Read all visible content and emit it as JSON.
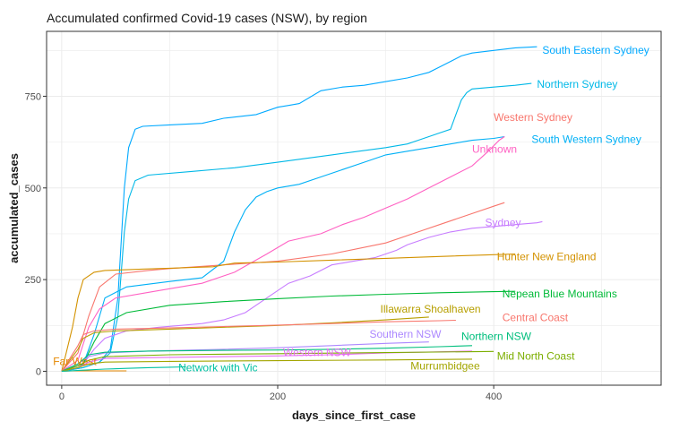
{
  "chart_data": {
    "type": "line",
    "title": "Accumulated confirmed Covid-19 cases (NSW), by region",
    "xlabel": "days_since_first_case",
    "ylabel": "accumulated_cases",
    "xlim": [
      -14,
      555
    ],
    "ylim": [
      -38,
      927
    ],
    "x_ticks": [
      0,
      200,
      400
    ],
    "y_ticks": [
      0,
      250,
      500,
      750
    ],
    "grid": true,
    "series": [
      {
        "name": "South Eastern Sydney",
        "color": "#00A9FF",
        "label_at": [
          445,
          876
        ],
        "x": [
          0,
          20,
          35,
          45,
          52,
          58,
          62,
          68,
          75,
          100,
          130,
          150,
          180,
          200,
          210,
          220,
          240,
          260,
          280,
          300,
          320,
          340,
          350,
          360,
          370,
          380,
          400,
          420,
          440
        ],
        "y": [
          0,
          10,
          25,
          60,
          200,
          500,
          610,
          660,
          668,
          672,
          676,
          690,
          700,
          720,
          725,
          730,
          765,
          775,
          780,
          790,
          800,
          815,
          830,
          845,
          860,
          868,
          875,
          882,
          885
        ]
      },
      {
        "name": "Northern Sydney",
        "color": "#00B8E7",
        "label_at": [
          440,
          783
        ],
        "x": [
          0,
          20,
          35,
          45,
          52,
          58,
          62,
          68,
          80,
          120,
          160,
          200,
          250,
          300,
          320,
          330,
          340,
          350,
          360,
          365,
          370,
          375,
          380,
          400,
          420,
          435
        ],
        "y": [
          0,
          10,
          25,
          50,
          150,
          380,
          470,
          520,
          535,
          545,
          555,
          570,
          590,
          610,
          620,
          630,
          640,
          650,
          660,
          700,
          740,
          760,
          770,
          775,
          780,
          785
        ]
      },
      {
        "name": "Western Sydney",
        "color": "#F8766D",
        "label_at": [
          400,
          692
        ],
        "x": [
          0,
          15,
          25,
          35,
          50,
          80,
          100,
          150,
          200,
          250,
          300,
          330,
          350,
          380,
          400,
          410
        ],
        "y": [
          0,
          50,
          150,
          230,
          265,
          275,
          280,
          290,
          300,
          320,
          350,
          380,
          400,
          430,
          450,
          460
        ]
      },
      {
        "name": "South Western Sydney",
        "color": "#00B0F6",
        "label_at": [
          435,
          633
        ],
        "x": [
          0,
          20,
          30,
          40,
          60,
          100,
          130,
          150,
          160,
          170,
          180,
          190,
          200,
          220,
          240,
          260,
          280,
          300,
          320,
          340,
          360,
          380,
          400,
          410
        ],
        "y": [
          0,
          20,
          100,
          200,
          230,
          245,
          255,
          300,
          380,
          440,
          475,
          490,
          500,
          510,
          530,
          550,
          570,
          590,
          600,
          610,
          620,
          630,
          635,
          640
        ]
      },
      {
        "name": "Unknown",
        "color": "#FF61C3",
        "label_at": [
          380,
          606
        ],
        "x": [
          0,
          15,
          25,
          35,
          50,
          80,
          100,
          130,
          160,
          190,
          210,
          240,
          260,
          280,
          300,
          320,
          340,
          360,
          380,
          395,
          405,
          410
        ],
        "y": [
          0,
          30,
          120,
          170,
          200,
          215,
          225,
          240,
          270,
          320,
          355,
          375,
          400,
          420,
          445,
          470,
          500,
          530,
          560,
          600,
          630,
          640
        ]
      },
      {
        "name": "Sydney",
        "color": "#C77CFF",
        "label_at": [
          392,
          406
        ],
        "x": [
          0,
          20,
          30,
          40,
          60,
          90,
          110,
          130,
          150,
          170,
          190,
          210,
          230,
          250,
          270,
          290,
          300,
          310,
          320,
          340,
          360,
          370,
          380,
          400,
          420,
          440,
          445
        ],
        "y": [
          0,
          20,
          60,
          90,
          110,
          120,
          125,
          130,
          140,
          160,
          200,
          240,
          260,
          290,
          300,
          310,
          320,
          330,
          345,
          365,
          380,
          385,
          390,
          395,
          400,
          405,
          408
        ]
      },
      {
        "name": "Hunter New England",
        "color": "#D39200",
        "label_at": [
          403,
          312
        ],
        "x": [
          0,
          10,
          15,
          20,
          30,
          40,
          60,
          80,
          100,
          120,
          140,
          160,
          200,
          250,
          300,
          350,
          400,
          420
        ],
        "y": [
          0,
          120,
          200,
          250,
          270,
          275,
          277,
          279,
          281,
          283,
          285,
          295,
          298,
          303,
          308,
          313,
          318,
          320
        ]
      },
      {
        "name": "Nepean Blue Mountains",
        "color": "#00BA38",
        "label_at": [
          408,
          211
        ],
        "x": [
          0,
          20,
          30,
          40,
          60,
          100,
          150,
          200,
          250,
          300,
          350,
          400,
          420
        ],
        "y": [
          0,
          20,
          80,
          130,
          160,
          180,
          190,
          198,
          205,
          210,
          214,
          217,
          218
        ]
      },
      {
        "name": "Illawarra Shoalhaven",
        "color": "#B79F00",
        "label_at": [
          295,
          170
        ],
        "x": [
          0,
          15,
          20,
          30,
          50,
          100,
          150,
          200,
          250,
          300,
          340
        ],
        "y": [
          0,
          60,
          90,
          105,
          110,
          115,
          120,
          125,
          132,
          140,
          148
        ]
      },
      {
        "name": "Central Coast",
        "color": "#F8766D",
        "label_at": [
          408,
          146
        ],
        "x": [
          0,
          15,
          20,
          30,
          50,
          100,
          150,
          200,
          250,
          300,
          350,
          365
        ],
        "y": [
          0,
          70,
          100,
          110,
          115,
          118,
          122,
          126,
          130,
          135,
          138,
          139
        ]
      },
      {
        "name": "Southern NSW",
        "color": "#AC88FF",
        "label_at": [
          285,
          101
        ],
        "x": [
          0,
          15,
          25,
          40,
          80,
          150,
          200,
          250,
          300,
          340
        ],
        "y": [
          0,
          20,
          40,
          50,
          55,
          60,
          64,
          70,
          76,
          80
        ]
      },
      {
        "name": "Northern NSW",
        "color": "#00BF7D",
        "label_at": [
          370,
          95
        ],
        "x": [
          0,
          15,
          25,
          40,
          80,
          150,
          200,
          250,
          300,
          350,
          380
        ],
        "y": [
          0,
          20,
          45,
          52,
          55,
          57,
          58,
          60,
          63,
          67,
          70
        ]
      },
      {
        "name": "Western NSW",
        "color": "#E76BF3",
        "label_at": [
          205,
          51
        ],
        "x": [
          0,
          15,
          25,
          40,
          100,
          200,
          250,
          300,
          380
        ],
        "y": [
          0,
          10,
          25,
          35,
          38,
          42,
          45,
          50,
          55
        ]
      },
      {
        "name": "Mid North Coast",
        "color": "#7CAE00",
        "label_at": [
          403,
          42
        ],
        "x": [
          0,
          15,
          25,
          40,
          100,
          200,
          300,
          400
        ],
        "y": [
          0,
          15,
          30,
          40,
          45,
          48,
          51,
          54
        ]
      },
      {
        "name": "Murrumbidgee",
        "color": "#A3A500",
        "label_at": [
          323,
          14
        ],
        "x": [
          0,
          15,
          25,
          40,
          100,
          200,
          300,
          380
        ],
        "y": [
          0,
          10,
          20,
          25,
          27,
          29,
          31,
          33
        ]
      },
      {
        "name": "Far West",
        "color": "#E58700",
        "label_at": [
          -8,
          27
        ],
        "x": [
          0,
          10,
          20,
          40,
          60
        ],
        "y": [
          0,
          1,
          1,
          1,
          1
        ]
      },
      {
        "name": "Network with Vic",
        "color": "#00C1A3",
        "label_at": [
          108,
          10
        ],
        "x": [
          0,
          20,
          40,
          60,
          80,
          100,
          115
        ],
        "y": [
          0,
          3,
          6,
          8,
          10,
          11,
          12
        ]
      }
    ]
  }
}
